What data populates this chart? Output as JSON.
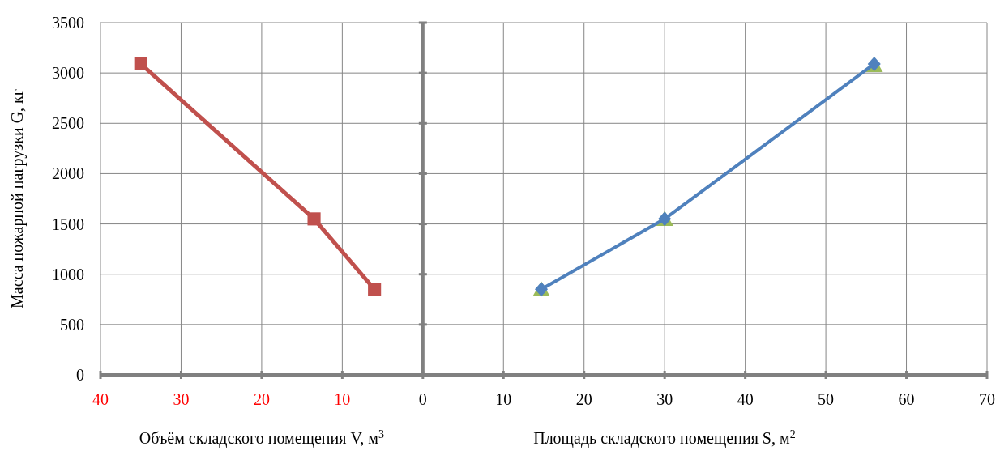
{
  "chart_data": {
    "type": "line",
    "ylabel": "Масса пожарной нагрузки G, кг",
    "xlabel": "Площадь складского помещения S, м$^{2}$",
    "annotations": [
      "Объём складского помещения V, м$^{3}$"
    ],
    "xlim": [
      -40,
      70
    ],
    "xticks": [
      {
        "value": -40,
        "label": "40"
      },
      {
        "value": -30,
        "label": "30"
      },
      {
        "value": -20,
        "label": "20"
      },
      {
        "value": -10,
        "label": "10"
      },
      0,
      10,
      20,
      30,
      40,
      50,
      60,
      70
    ],
    "ylim": [
      0,
      3500
    ],
    "yticks": [
      0,
      500,
      1000,
      1500,
      2000,
      2500,
      3000,
      3500
    ],
    "grid": true,
    "series": [
      {
        "type": "scatter",
        "color": "#9bbb59",
        "marker": "triangle",
        "x": [
          14.7,
          30,
          56
        ],
        "values": [
          830,
          1530,
          3060
        ]
      },
      {
        "color": "#c0504d",
        "marker": "square",
        "x": [
          -35,
          -13.5,
          -6
        ],
        "values": [
          3090,
          1550,
          850
        ]
      },
      {
        "color": "#4f81bd",
        "marker": "diamond",
        "x": [
          14.7,
          30,
          56
        ],
        "values": [
          850,
          1550,
          3090
        ]
      }
    ]
  }
}
